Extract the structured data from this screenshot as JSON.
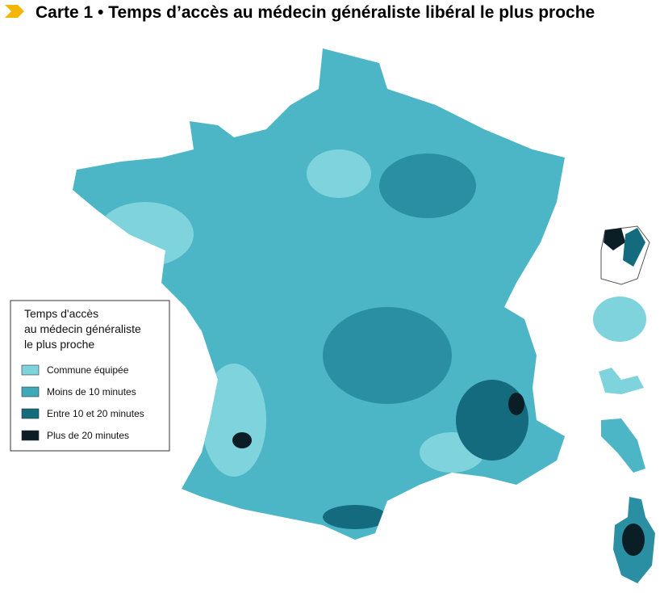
{
  "title": "Carte 1 • Temps d’accès au médecin généraliste libéral le plus proche",
  "legend": {
    "title": [
      "Temps d'accès",
      "au médecin généraliste",
      "le plus proche"
    ],
    "items": [
      {
        "label": "Commune équipée",
        "color": "#7fd3dd"
      },
      {
        "label": "Moins de 10 minutes",
        "color": "#3fa9ba"
      },
      {
        "label": "Entre 10 et 20 minutes",
        "color": "#146b7e"
      },
      {
        "label": "Plus de 20 minutes",
        "color": "#0b1e26"
      }
    ]
  }
}
